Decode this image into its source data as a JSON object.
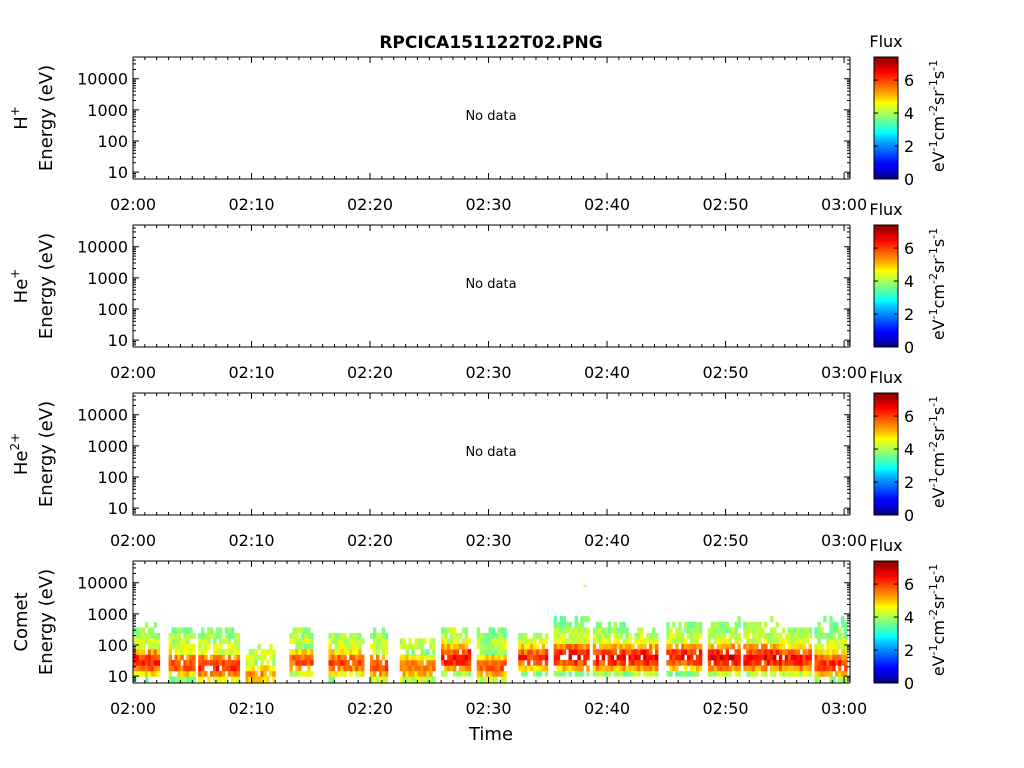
{
  "title": "RPCICA151122T02.PNG",
  "xlabel": "Time",
  "colorbar": {
    "title": "Flux",
    "unit_parts": [
      "eV",
      "-1",
      "cm",
      "-2",
      "sr",
      "-1",
      "s",
      "-1"
    ],
    "range": [
      0,
      7.4
    ],
    "ticks": [
      "0",
      "2",
      "4",
      "6"
    ],
    "colormap": "jet"
  },
  "chart_data": [
    {
      "type": "heatmap",
      "species": "H",
      "species_sup": "+",
      "ylabel": "Energy (eV)",
      "x_ticks": [
        "02:00",
        "02:10",
        "02:20",
        "02:30",
        "02:40",
        "02:50",
        "03:00"
      ],
      "x_range_min": [
        0,
        60.5
      ],
      "y_ticks": [
        "10",
        "100",
        "1000",
        "10000"
      ],
      "y_range_eV": [
        6,
        50000
      ],
      "y_scale": "log",
      "annotation": "No data",
      "cells": []
    },
    {
      "type": "heatmap",
      "species": "He",
      "species_sup": "+",
      "ylabel": "Energy (eV)",
      "x_ticks": [
        "02:00",
        "02:10",
        "02:20",
        "02:30",
        "02:40",
        "02:50",
        "03:00"
      ],
      "x_range_min": [
        0,
        60.5
      ],
      "y_ticks": [
        "10",
        "100",
        "1000",
        "10000"
      ],
      "y_range_eV": [
        6,
        50000
      ],
      "y_scale": "log",
      "annotation": "No data",
      "cells": []
    },
    {
      "type": "heatmap",
      "species": "He",
      "species_sup": "2+",
      "ylabel": "Energy (eV)",
      "x_ticks": [
        "02:00",
        "02:10",
        "02:20",
        "02:30",
        "02:40",
        "02:50",
        "03:00"
      ],
      "x_range_min": [
        0,
        60.5
      ],
      "y_ticks": [
        "10",
        "100",
        "1000",
        "10000"
      ],
      "y_range_eV": [
        6,
        50000
      ],
      "y_scale": "log",
      "annotation": "No data",
      "cells": []
    },
    {
      "type": "heatmap",
      "species": "Comet",
      "species_sup": "",
      "ylabel": "Energy (eV)",
      "x_ticks": [
        "02:00",
        "02:10",
        "02:20",
        "02:30",
        "02:40",
        "02:50",
        "03:00"
      ],
      "x_range_min": [
        0,
        60.5
      ],
      "y_ticks": [
        "10",
        "100",
        "1000",
        "10000"
      ],
      "y_range_eV": [
        6,
        50000
      ],
      "y_scale": "log",
      "annotation": "",
      "energy_bins_eV": [
        8,
        12,
        18,
        27,
        40,
        60,
        90,
        135,
        200,
        300,
        450,
        680
      ],
      "bursts": [
        {
          "t": [
            0.0,
            2.2
          ],
          "peak_eV": 30,
          "peak_flux": 6.8,
          "max_eV": 600
        },
        {
          "t": [
            3.0,
            5.2
          ],
          "peak_eV": 25,
          "peak_flux": 6.5,
          "max_eV": 450
        },
        {
          "t": [
            5.5,
            8.8
          ],
          "peak_eV": 22,
          "peak_flux": 6.7,
          "max_eV": 450
        },
        {
          "t": [
            9.5,
            11.8
          ],
          "peak_eV": 12,
          "peak_flux": 5.8,
          "max_eV": 100
        },
        {
          "t": [
            13.2,
            15.2
          ],
          "peak_eV": 30,
          "peak_flux": 6.3,
          "max_eV": 400
        },
        {
          "t": [
            16.5,
            19.5
          ],
          "peak_eV": 28,
          "peak_flux": 6.4,
          "max_eV": 300
        },
        {
          "t": [
            20.0,
            21.5
          ],
          "peak_eV": 22,
          "peak_flux": 6.6,
          "max_eV": 400
        },
        {
          "t": [
            22.5,
            25.5
          ],
          "peak_eV": 20,
          "peak_flux": 6.2,
          "max_eV": 200
        },
        {
          "t": [
            26.0,
            28.5
          ],
          "peak_eV": 40,
          "peak_flux": 6.9,
          "max_eV": 450
        },
        {
          "t": [
            29.0,
            31.5
          ],
          "peak_eV": 20,
          "peak_flux": 6.3,
          "max_eV": 450
        },
        {
          "t": [
            32.5,
            35.0
          ],
          "peak_eV": 40,
          "peak_flux": 6.6,
          "max_eV": 300
        },
        {
          "t": [
            35.5,
            38.5
          ],
          "peak_eV": 45,
          "peak_flux": 7.0,
          "max_eV": 1200
        },
        {
          "t": [
            38.8,
            41.8
          ],
          "peak_eV": 40,
          "peak_flux": 6.9,
          "max_eV": 600
        },
        {
          "t": [
            41.8,
            44.2
          ],
          "peak_eV": 40,
          "peak_flux": 7.0,
          "max_eV": 450
        },
        {
          "t": [
            45.0,
            48.0
          ],
          "peak_eV": 45,
          "peak_flux": 6.9,
          "max_eV": 700
        },
        {
          "t": [
            48.5,
            51.2
          ],
          "peak_eV": 40,
          "peak_flux": 7.1,
          "max_eV": 900
        },
        {
          "t": [
            51.5,
            54.5
          ],
          "peak_eV": 40,
          "peak_flux": 7.0,
          "max_eV": 700
        },
        {
          "t": [
            54.5,
            57.2
          ],
          "peak_eV": 35,
          "peak_flux": 6.8,
          "max_eV": 450
        },
        {
          "t": [
            57.5,
            60.2
          ],
          "peak_eV": 25,
          "peak_flux": 6.6,
          "max_eV": 900
        }
      ],
      "isolated_points": [
        {
          "t": 38.0,
          "eV": 8000,
          "flux": 4.2
        }
      ]
    }
  ]
}
